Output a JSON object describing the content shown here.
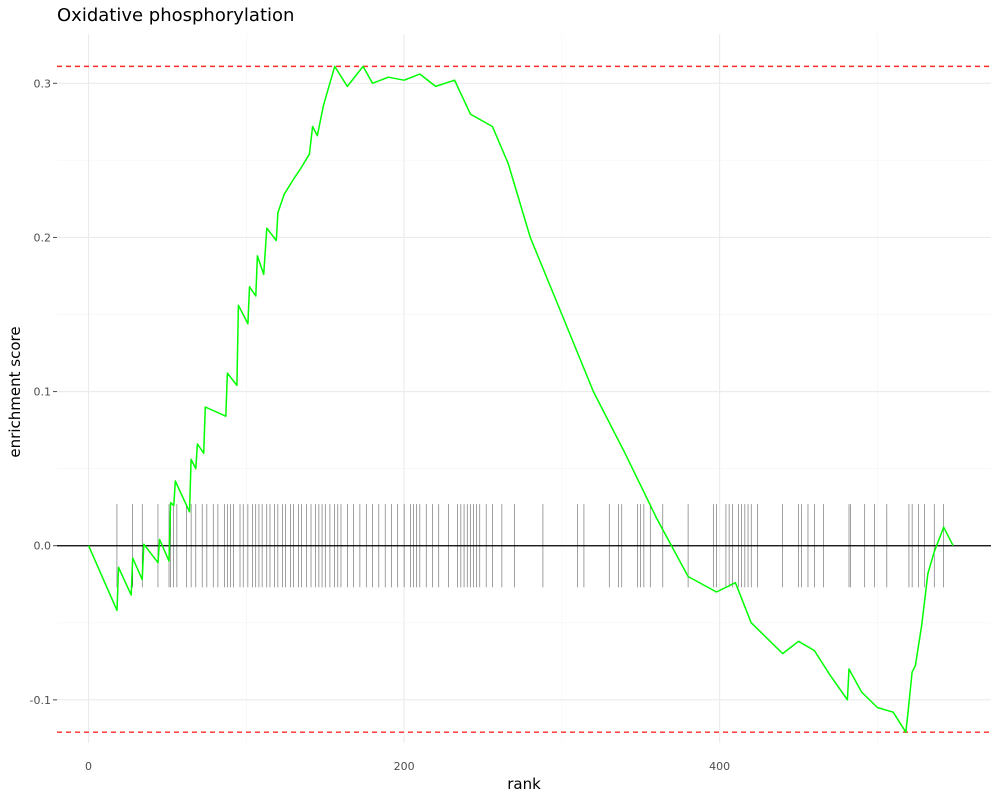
{
  "chart_data": {
    "type": "line",
    "title": "Oxidative phosphorylation",
    "xlabel": "rank",
    "ylabel": "enrichment score",
    "xlim": [
      -20,
      572
    ],
    "ylim": [
      -0.128,
      0.332
    ],
    "grid": true,
    "x_ticks": [
      {
        "value": 0,
        "label": "0"
      },
      {
        "value": 200,
        "label": "200"
      },
      {
        "value": 400,
        "label": "400"
      }
    ],
    "y_ticks": [
      {
        "value": 0.3,
        "label": "0.3"
      },
      {
        "value": 0.2,
        "label": "0.2"
      },
      {
        "value": 0.1,
        "label": "0.1"
      },
      {
        "value": 0.0,
        "label": "0.0"
      },
      {
        "value": -0.1,
        "label": "-0.1"
      }
    ],
    "max_line": 0.311,
    "min_line": -0.121,
    "series": [
      {
        "color": "#00ff00",
        "x": [
          0,
          18,
          19,
          27,
          28,
          34,
          35,
          44,
          45,
          51,
          52,
          54,
          55,
          64,
          65,
          68,
          69,
          73,
          74,
          87,
          88,
          94,
          95,
          101,
          102,
          106,
          107,
          111,
          113,
          119,
          120,
          124,
          130,
          134,
          140,
          142,
          145,
          149,
          156,
          164,
          174,
          180,
          190,
          200,
          210,
          220,
          232,
          242,
          256,
          266,
          280,
          300,
          320,
          340,
          360,
          380,
          398,
          410,
          420,
          440,
          450,
          460,
          470,
          481,
          482,
          490,
          500,
          510,
          518,
          519,
          522,
          524,
          528,
          532,
          536,
          542,
          548
        ],
        "y": [
          0.0,
          -0.042,
          -0.014,
          -0.032,
          -0.008,
          -0.022,
          0.001,
          -0.011,
          0.004,
          -0.01,
          0.028,
          0.026,
          0.042,
          0.022,
          0.056,
          0.05,
          0.066,
          0.06,
          0.09,
          0.084,
          0.112,
          0.104,
          0.156,
          0.144,
          0.168,
          0.162,
          0.188,
          0.176,
          0.206,
          0.198,
          0.216,
          0.228,
          0.238,
          0.244,
          0.254,
          0.272,
          0.266,
          0.286,
          0.311,
          0.298,
          0.311,
          0.3,
          0.304,
          0.302,
          0.306,
          0.298,
          0.302,
          0.28,
          0.272,
          0.248,
          0.2,
          0.15,
          0.1,
          0.06,
          0.018,
          -0.02,
          -0.03,
          -0.024,
          -0.05,
          -0.07,
          -0.062,
          -0.068,
          -0.084,
          -0.1,
          -0.08,
          -0.095,
          -0.105,
          -0.108,
          -0.121,
          -0.112,
          -0.082,
          -0.078,
          -0.052,
          -0.018,
          -0.004,
          0.012,
          0.0
        ]
      }
    ],
    "gene_hits": [
      18,
      28,
      34,
      44,
      51,
      52,
      54,
      56,
      62,
      65,
      68,
      72,
      75,
      79,
      82,
      86,
      88,
      90,
      92,
      96,
      98,
      101,
      104,
      106,
      108,
      110,
      113,
      115,
      118,
      120,
      123,
      125,
      128,
      130,
      133,
      135,
      138,
      141,
      144,
      146,
      148,
      150,
      153,
      156,
      158,
      160,
      164,
      168,
      172,
      176,
      180,
      184,
      188,
      192,
      196,
      200,
      204,
      206,
      208,
      210,
      214,
      218,
      222,
      228,
      234,
      236,
      238,
      240,
      242,
      244,
      246,
      248,
      252,
      256,
      262,
      270,
      288,
      310,
      314,
      330,
      336,
      338,
      348,
      350,
      352,
      356,
      364,
      380,
      396,
      398,
      404,
      406,
      408,
      412,
      414,
      416,
      418,
      420,
      424,
      440,
      450,
      452,
      456,
      460,
      466,
      482,
      483,
      492,
      498,
      506,
      520,
      522,
      526,
      530,
      536,
      542
    ]
  }
}
